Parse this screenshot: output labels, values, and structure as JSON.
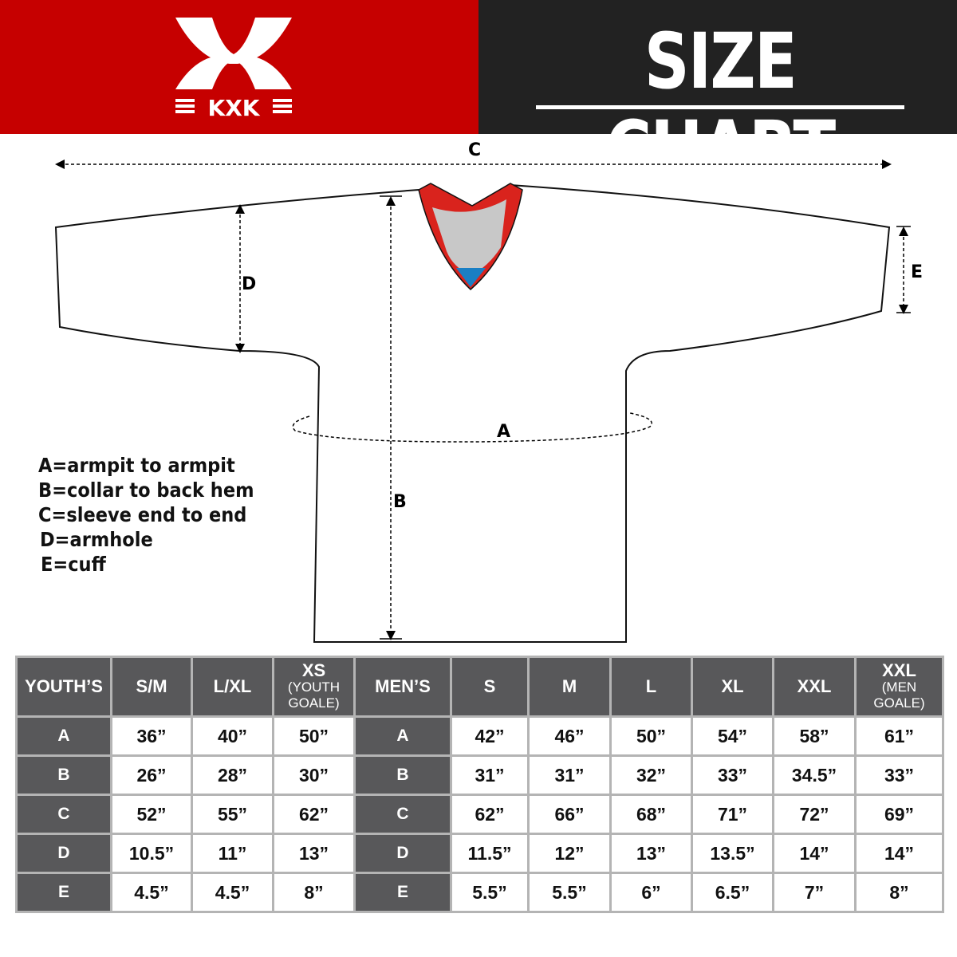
{
  "header": {
    "brand": "KXK",
    "title": "SIZE CHART",
    "brand_color": "#c60000"
  },
  "diagram": {
    "labels": {
      "a": "A",
      "b": "B",
      "c": "C",
      "d": "D",
      "e": "E"
    }
  },
  "legend": [
    "A=armpit to armpit",
    "B=collar to back hem",
    "C=sleeve end to end",
    "D=armhole",
    "E=cuff"
  ],
  "table": {
    "headers": [
      {
        "main": "YOUTH’S"
      },
      {
        "main": "S/M"
      },
      {
        "main": "L/XL"
      },
      {
        "main": "XS",
        "sub": "(YOUTH GOALE)"
      },
      {
        "main": "MEN’S"
      },
      {
        "main": "S"
      },
      {
        "main": "M"
      },
      {
        "main": "L"
      },
      {
        "main": "XL"
      },
      {
        "main": "XXL"
      },
      {
        "main": "XXL",
        "sub": "(MEN GOALE)"
      }
    ],
    "rows": [
      [
        "A",
        "36”",
        "40”",
        "50”",
        "A",
        "42”",
        "46”",
        "50”",
        "54”",
        "58”",
        "61”"
      ],
      [
        "B",
        "26”",
        "28”",
        "30”",
        "B",
        "31”",
        "31”",
        "32”",
        "33”",
        "34.5”",
        "33”"
      ],
      [
        "C",
        "52”",
        "55”",
        "62”",
        "C",
        "62”",
        "66”",
        "68”",
        "71”",
        "72”",
        "69”"
      ],
      [
        "D",
        "10.5”",
        "11”",
        "13”",
        "D",
        "11.5”",
        "12”",
        "13”",
        "13.5”",
        "14”",
        "14”"
      ],
      [
        "E",
        "4.5”",
        "4.5”",
        "8”",
        "E",
        "5.5”",
        "5.5”",
        "6”",
        "6.5”",
        "7”",
        "8”"
      ]
    ]
  }
}
